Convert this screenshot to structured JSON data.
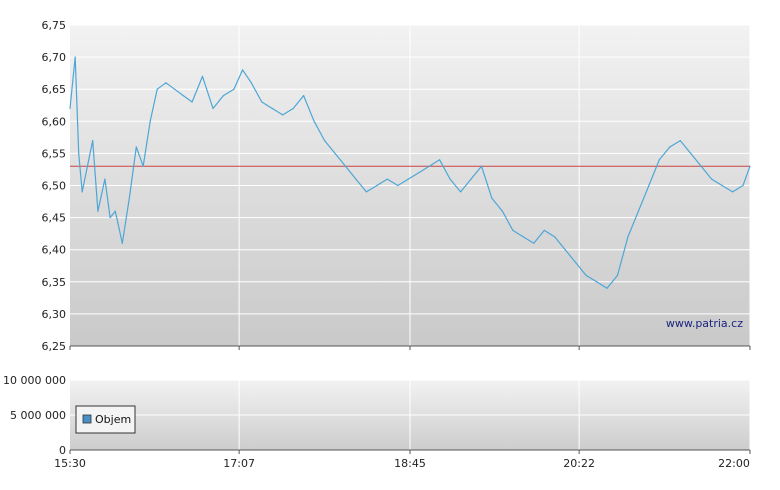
{
  "chart_data": [
    {
      "type": "line",
      "ylim": [
        6.25,
        6.75
      ],
      "ytick_labels": [
        "6,75",
        "6,70",
        "6,65",
        "6,60",
        "6,55",
        "6,50",
        "6,45",
        "6,40",
        "6,35",
        "6,30",
        "6,25"
      ],
      "ytick_values": [
        6.75,
        6.7,
        6.65,
        6.6,
        6.55,
        6.5,
        6.45,
        6.4,
        6.35,
        6.3,
        6.25
      ],
      "x_range": [
        "15:30",
        "22:00"
      ],
      "reference_line": 6.53,
      "grid": true,
      "watermark": "www.patria.cz",
      "series": [
        {
          "color": "#4da6d6",
          "x": [
            "15:30",
            "15:33",
            "15:35",
            "15:37",
            "15:40",
            "15:43",
            "15:46",
            "15:50",
            "15:53",
            "15:56",
            "16:00",
            "16:04",
            "16:08",
            "16:12",
            "16:16",
            "16:20",
            "16:25",
            "16:30",
            "16:35",
            "16:40",
            "16:46",
            "16:52",
            "16:58",
            "17:04",
            "17:09",
            "17:14",
            "17:20",
            "17:26",
            "17:32",
            "17:38",
            "17:44",
            "17:50",
            "17:56",
            "18:02",
            "18:08",
            "18:14",
            "18:20",
            "18:26",
            "18:32",
            "18:38",
            "18:44",
            "18:50",
            "18:56",
            "19:02",
            "19:08",
            "19:14",
            "19:20",
            "19:26",
            "19:32",
            "19:38",
            "19:44",
            "19:50",
            "19:56",
            "20:02",
            "20:08",
            "20:14",
            "20:20",
            "20:26",
            "20:32",
            "20:38",
            "20:44",
            "20:50",
            "20:56",
            "21:02",
            "21:08",
            "21:14",
            "21:20",
            "21:26",
            "21:32",
            "21:38",
            "21:44",
            "21:50",
            "21:56",
            "22:00"
          ],
          "values": [
            6.62,
            6.7,
            6.55,
            6.49,
            6.53,
            6.57,
            6.46,
            6.51,
            6.45,
            6.46,
            6.41,
            6.48,
            6.56,
            6.53,
            6.6,
            6.65,
            6.66,
            6.65,
            6.64,
            6.63,
            6.67,
            6.62,
            6.64,
            6.65,
            6.68,
            6.66,
            6.63,
            6.62,
            6.61,
            6.62,
            6.64,
            6.6,
            6.57,
            6.55,
            6.53,
            6.51,
            6.49,
            6.5,
            6.51,
            6.5,
            6.51,
            6.52,
            6.53,
            6.54,
            6.51,
            6.49,
            6.51,
            6.53,
            6.48,
            6.46,
            6.43,
            6.42,
            6.41,
            6.43,
            6.42,
            6.4,
            6.38,
            6.36,
            6.35,
            6.34,
            6.36,
            6.42,
            6.46,
            6.5,
            6.54,
            6.56,
            6.57,
            6.55,
            6.53,
            6.51,
            6.5,
            6.49,
            6.5,
            6.53
          ]
        }
      ]
    },
    {
      "type": "bar",
      "ylim": [
        0,
        10000000
      ],
      "ytick_labels": [
        "10 000 000",
        "5 000 000",
        "0"
      ],
      "ytick_values": [
        10000000,
        5000000,
        0
      ],
      "xtick_labels": [
        "15:30",
        "17:07",
        "18:45",
        "20:22",
        "22:00"
      ],
      "grid": true,
      "legend": "Objem",
      "legend_color": "#4a90c8",
      "values": []
    }
  ]
}
